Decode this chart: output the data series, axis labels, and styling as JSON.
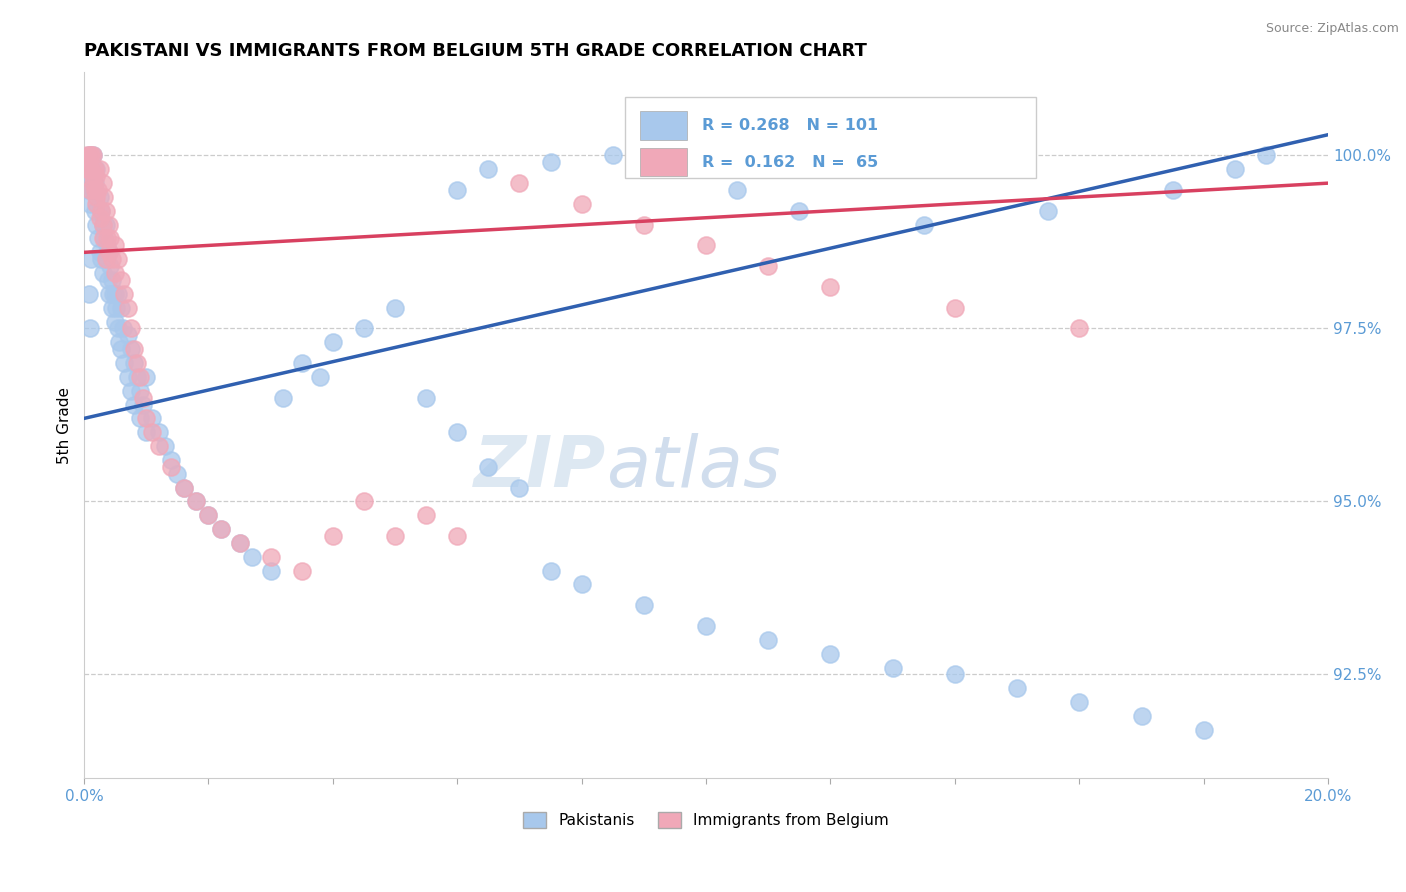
{
  "title": "PAKISTANI VS IMMIGRANTS FROM BELGIUM 5TH GRADE CORRELATION CHART",
  "source": "Source: ZipAtlas.com",
  "ylabel": "5th Grade",
  "xlim": [
    0.0,
    20.0
  ],
  "ylim": [
    91.0,
    101.2
  ],
  "yticks": [
    92.5,
    95.0,
    97.5,
    100.0
  ],
  "ytick_labels": [
    "92.5%",
    "95.0%",
    "97.5%",
    "100.0%"
  ],
  "xticks": [
    0.0,
    2.0,
    4.0,
    6.0,
    8.0,
    10.0,
    12.0,
    14.0,
    16.0,
    18.0,
    20.0
  ],
  "xtick_labels": [
    "0.0%",
    "",
    "",
    "",
    "",
    "",
    "",
    "",
    "",
    "",
    "20.0%"
  ],
  "blue_R": 0.268,
  "blue_N": 101,
  "pink_R": 0.162,
  "pink_N": 65,
  "blue_color": "#A8C8EC",
  "pink_color": "#F0A8B8",
  "blue_line_color": "#3060B0",
  "pink_line_color": "#D84060",
  "legend_label_blue": "Pakistanis",
  "legend_label_pink": "Immigrants from Belgium",
  "watermark_zip": "ZIP",
  "watermark_atlas": "atlas",
  "blue_line_x0": 0.0,
  "blue_line_y0": 96.2,
  "blue_line_x1": 20.0,
  "blue_line_y1": 100.3,
  "pink_line_x0": 0.0,
  "pink_line_y0": 98.6,
  "pink_line_x1": 20.0,
  "pink_line_y1": 99.6,
  "blue_x": [
    0.05,
    0.07,
    0.08,
    0.1,
    0.1,
    0.12,
    0.15,
    0.15,
    0.17,
    0.18,
    0.2,
    0.2,
    0.22,
    0.25,
    0.25,
    0.27,
    0.28,
    0.3,
    0.3,
    0.32,
    0.35,
    0.35,
    0.37,
    0.38,
    0.4,
    0.4,
    0.42,
    0.45,
    0.45,
    0.47,
    0.5,
    0.5,
    0.52,
    0.55,
    0.55,
    0.57,
    0.6,
    0.6,
    0.62,
    0.65,
    0.7,
    0.7,
    0.75,
    0.75,
    0.8,
    0.8,
    0.85,
    0.9,
    0.9,
    0.95,
    1.0,
    1.0,
    1.1,
    1.2,
    1.3,
    1.4,
    1.5,
    1.6,
    1.8,
    2.0,
    2.2,
    2.5,
    2.7,
    3.0,
    3.2,
    3.5,
    3.8,
    4.0,
    4.5,
    5.0,
    5.5,
    6.0,
    6.5,
    7.0,
    7.5,
    8.0,
    9.0,
    10.0,
    11.0,
    12.0,
    13.0,
    14.0,
    15.0,
    16.0,
    17.0,
    18.0,
    6.0,
    6.5,
    7.5,
    8.5,
    9.5,
    10.5,
    11.5,
    13.5,
    15.5,
    17.5,
    18.5,
    19.0,
    0.1,
    0.08,
    0.12
  ],
  "blue_y": [
    99.8,
    99.5,
    100.0,
    99.7,
    99.3,
    99.8,
    99.5,
    100.0,
    99.2,
    99.6,
    99.0,
    99.8,
    98.8,
    99.4,
    98.6,
    99.2,
    98.5,
    99.0,
    98.3,
    98.8,
    99.0,
    98.5,
    98.7,
    98.2,
    98.6,
    98.0,
    98.4,
    98.2,
    97.8,
    98.0,
    98.0,
    97.6,
    97.8,
    97.5,
    98.0,
    97.3,
    97.8,
    97.2,
    97.5,
    97.0,
    97.4,
    96.8,
    97.2,
    96.6,
    97.0,
    96.4,
    96.8,
    96.6,
    96.2,
    96.4,
    96.8,
    96.0,
    96.2,
    96.0,
    95.8,
    95.6,
    95.4,
    95.2,
    95.0,
    94.8,
    94.6,
    94.4,
    94.2,
    94.0,
    96.5,
    97.0,
    96.8,
    97.3,
    97.5,
    97.8,
    96.5,
    96.0,
    95.5,
    95.2,
    94.0,
    93.8,
    93.5,
    93.2,
    93.0,
    92.8,
    92.6,
    92.5,
    92.3,
    92.1,
    91.9,
    91.7,
    99.5,
    99.8,
    99.9,
    100.0,
    99.8,
    99.5,
    99.2,
    99.0,
    99.2,
    99.5,
    99.8,
    100.0,
    97.5,
    98.0,
    98.5
  ],
  "pink_x": [
    0.05,
    0.07,
    0.1,
    0.12,
    0.15,
    0.15,
    0.17,
    0.18,
    0.2,
    0.2,
    0.22,
    0.25,
    0.27,
    0.3,
    0.3,
    0.32,
    0.35,
    0.37,
    0.4,
    0.4,
    0.42,
    0.45,
    0.5,
    0.5,
    0.55,
    0.6,
    0.65,
    0.7,
    0.75,
    0.8,
    0.85,
    0.9,
    0.95,
    1.0,
    1.1,
    1.2,
    1.4,
    1.6,
    1.8,
    2.0,
    2.2,
    2.5,
    3.0,
    3.5,
    4.0,
    4.5,
    5.0,
    5.5,
    6.0,
    7.0,
    8.0,
    9.0,
    10.0,
    11.0,
    12.0,
    14.0,
    16.0,
    0.08,
    0.1,
    0.12,
    0.15,
    0.2,
    0.25,
    0.3,
    0.35
  ],
  "pink_y": [
    100.0,
    99.8,
    100.0,
    99.8,
    100.0,
    99.6,
    99.8,
    99.5,
    99.7,
    99.3,
    99.5,
    99.8,
    99.2,
    99.6,
    99.0,
    99.4,
    99.2,
    98.8,
    99.0,
    98.6,
    98.8,
    98.5,
    98.7,
    98.3,
    98.5,
    98.2,
    98.0,
    97.8,
    97.5,
    97.2,
    97.0,
    96.8,
    96.5,
    96.2,
    96.0,
    95.8,
    95.5,
    95.2,
    95.0,
    94.8,
    94.6,
    94.4,
    94.2,
    94.0,
    94.5,
    95.0,
    94.5,
    94.8,
    94.5,
    99.6,
    99.3,
    99.0,
    98.7,
    98.4,
    98.1,
    97.8,
    97.5,
    99.8,
    99.5,
    100.0,
    99.7,
    99.4,
    99.1,
    98.8,
    98.5
  ]
}
